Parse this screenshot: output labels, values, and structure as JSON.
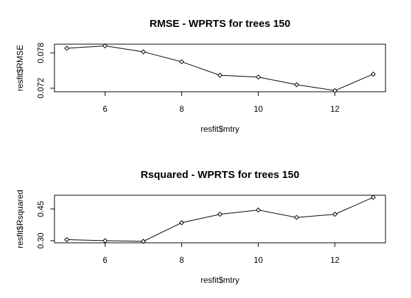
{
  "chart_data": [
    {
      "type": "line",
      "title": "RMSE - WPRTS for trees 150",
      "x_label": "resfit$mtry",
      "y_label": "resfit$RMSE",
      "x": [
        5,
        6,
        7,
        8,
        9,
        10,
        11,
        12,
        13
      ],
      "values": [
        0.0788,
        0.0792,
        0.0782,
        0.0765,
        0.0742,
        0.0739,
        0.0726,
        0.0716,
        0.0744
      ],
      "xlim": [
        4.68,
        13.32
      ],
      "xticks": [
        6,
        8,
        10,
        12
      ],
      "ylim": [
        0.0714,
        0.0795
      ],
      "yticks": [
        0.072,
        0.078
      ],
      "color": "#000000"
    },
    {
      "type": "line",
      "title": "Rsquared - WPRTS for trees 150",
      "x_label": "resfit$mtry",
      "y_label": "resfit$Rsquared",
      "x": [
        5,
        6,
        7,
        8,
        9,
        10,
        11,
        12,
        13
      ],
      "values": [
        0.305,
        0.3,
        0.297,
        0.385,
        0.425,
        0.445,
        0.41,
        0.425,
        0.505
      ],
      "xlim": [
        4.68,
        13.32
      ],
      "xticks": [
        6,
        8,
        10,
        12
      ],
      "ylim": [
        0.29,
        0.515
      ],
      "yticks": [
        {
          "value": 0.3,
          "label": "0.30"
        },
        0.45
      ],
      "color": "#000000"
    }
  ]
}
